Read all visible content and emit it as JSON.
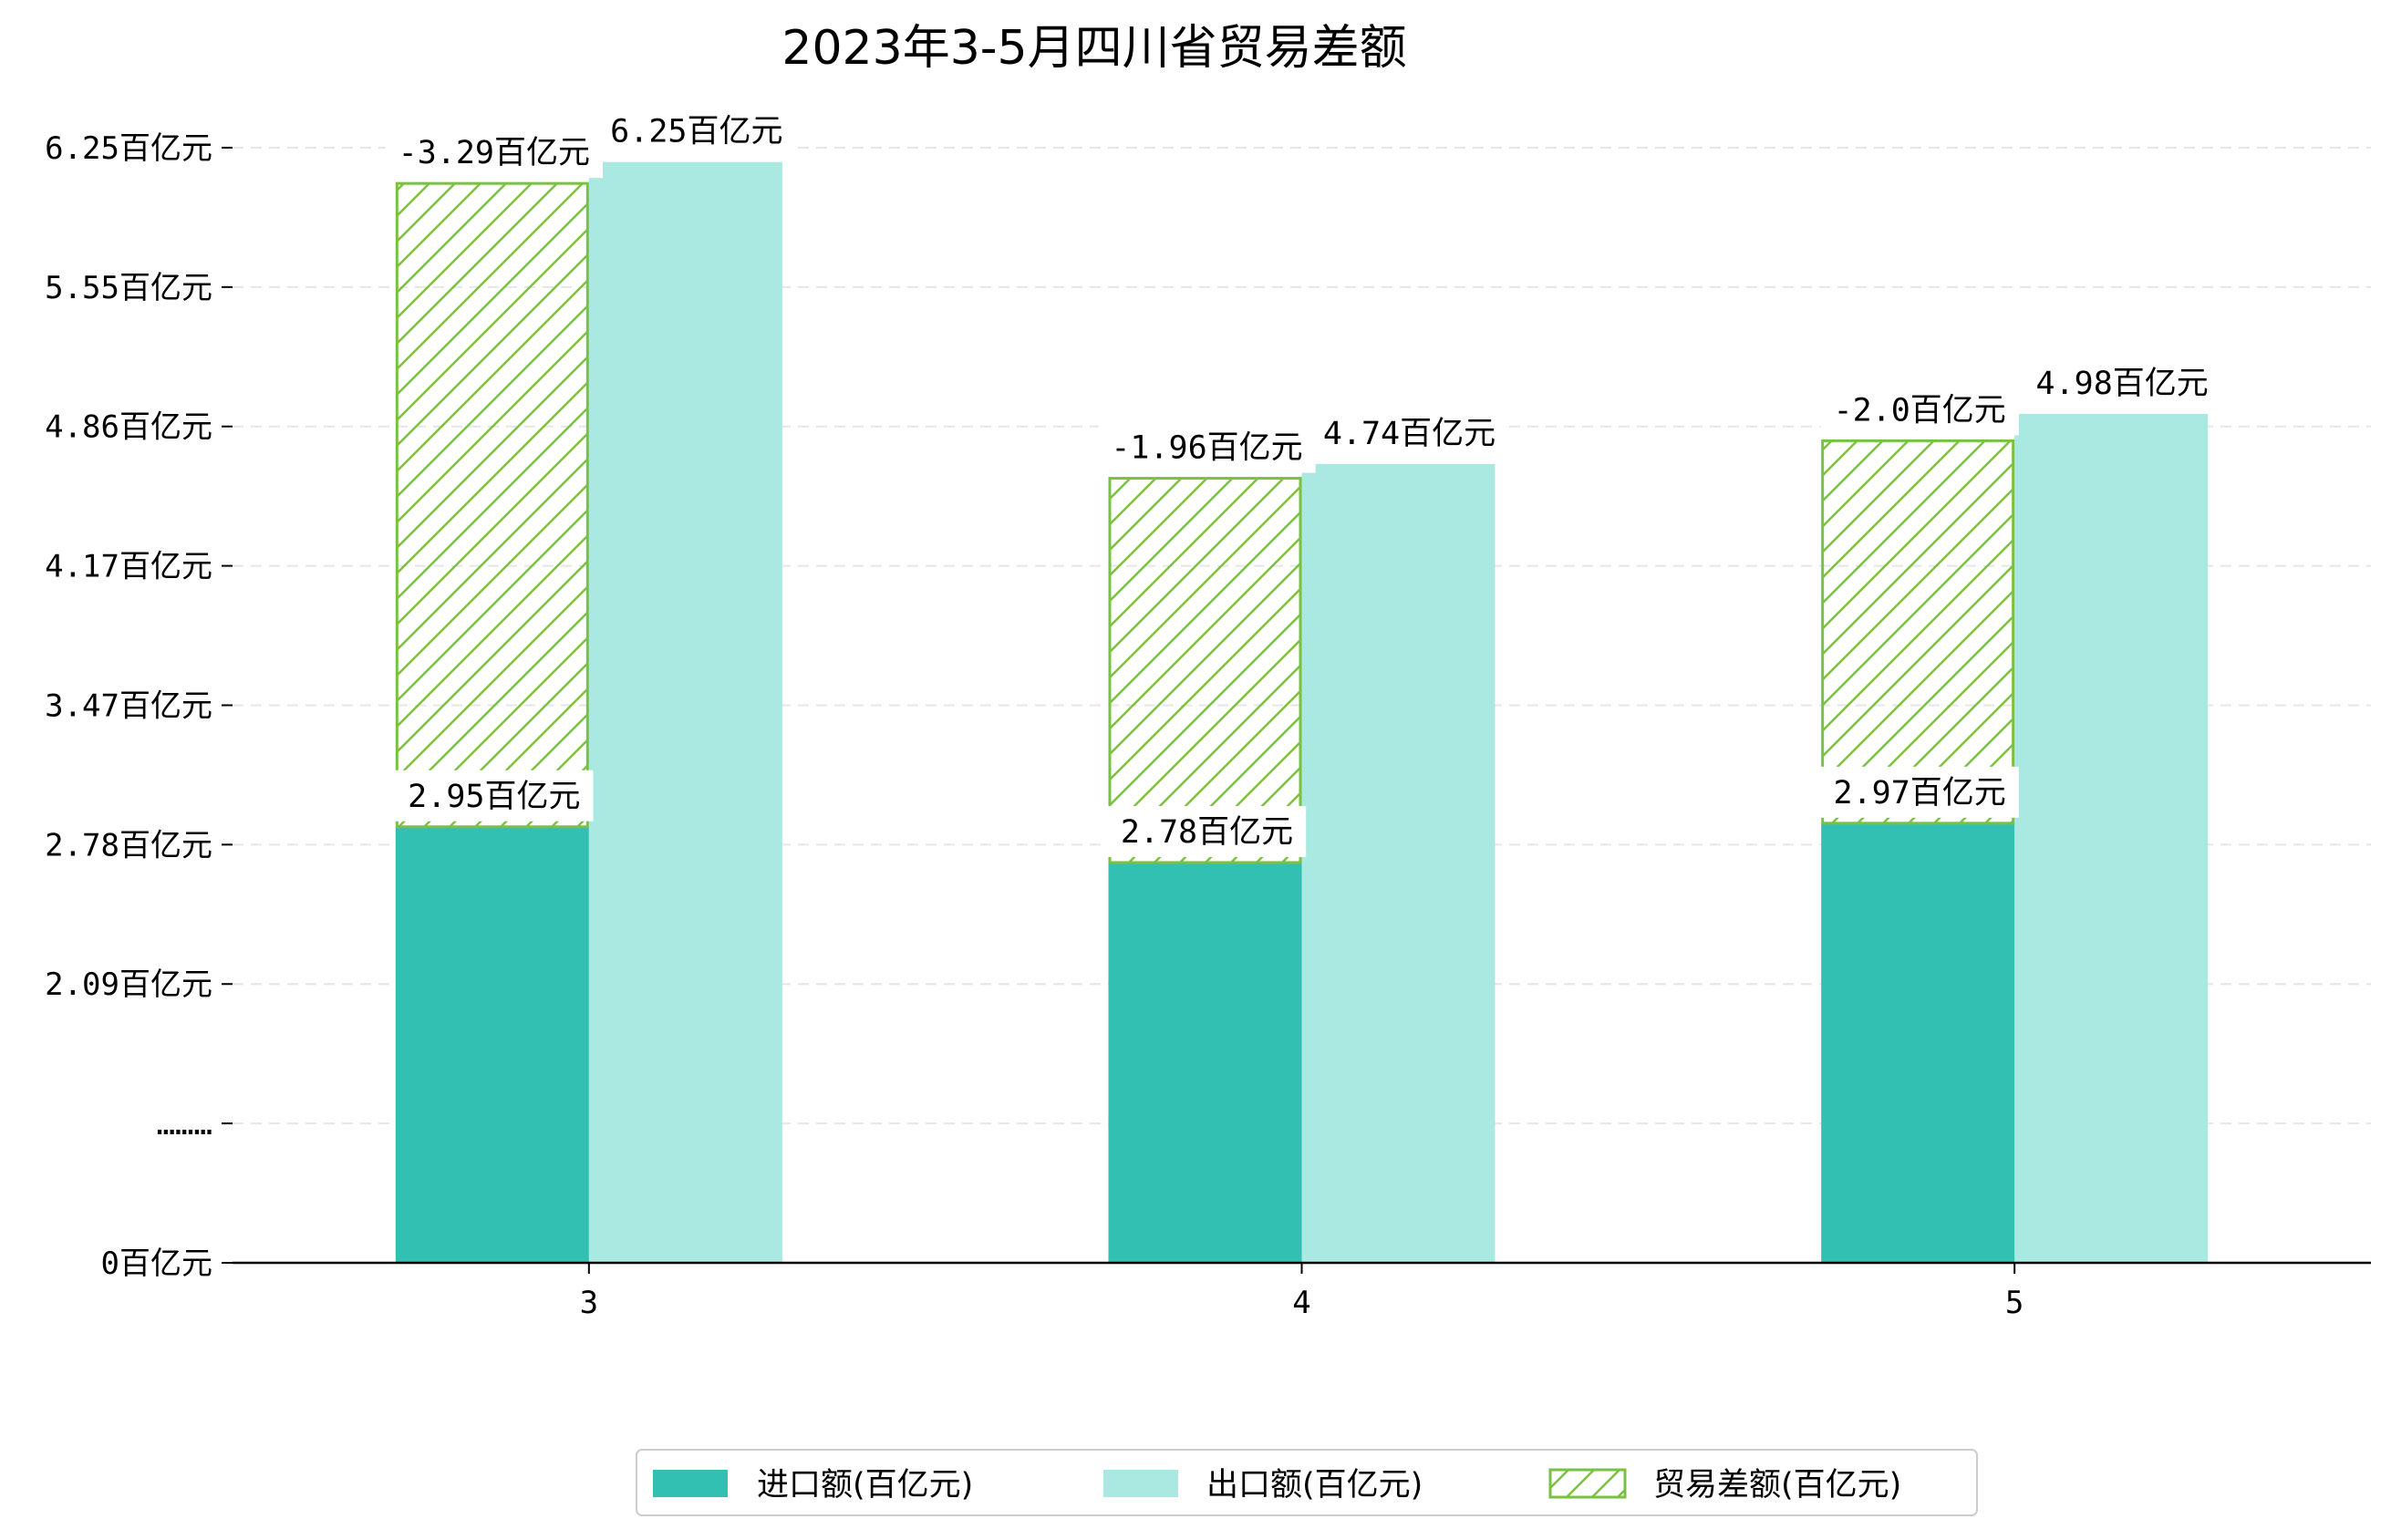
{
  "chart_data": {
    "type": "bar",
    "title": "2023年3-5月四川省贸易差额",
    "xlabel": "",
    "ylabel": "",
    "categories": [
      "3",
      "4",
      "5"
    ],
    "ylim": [
      0,
      6.25
    ],
    "y_ticks": [
      {
        "value": 0,
        "label": "0百亿元"
      },
      {
        "value": 0.78,
        "label": "………"
      },
      {
        "value": 1.56,
        "label": "2.09百亿元"
      },
      {
        "value": 2.34,
        "label": "2.78百亿元"
      },
      {
        "value": 3.12,
        "label": "3.47百亿元"
      },
      {
        "value": 3.9,
        "label": "4.17百亿元"
      },
      {
        "value": 4.68,
        "label": "4.86百亿元"
      },
      {
        "value": 5.46,
        "label": "5.55百亿元"
      },
      {
        "value": 6.24,
        "label": "6.25百亿元"
      }
    ],
    "series": [
      {
        "name": "进口额(百亿元)",
        "values": [
          2.95,
          2.78,
          2.97
        ],
        "labels": [
          "2.95百亿元",
          "2.78百亿元",
          "2.97百亿元"
        ],
        "color": "#32c0b3",
        "display_top": [
          2.44,
          2.24,
          2.46
        ]
      },
      {
        "name": "出口额(百亿元)",
        "values": [
          6.25,
          4.74,
          4.98
        ],
        "labels": [
          "6.25百亿元",
          "4.74百亿元",
          "4.98百亿元"
        ],
        "color": "#aae8e2",
        "display_top": [
          6.16,
          4.47,
          4.75
        ]
      },
      {
        "name": "贸易差额(百亿元)",
        "values": [
          -3.29,
          -1.96,
          -2.0
        ],
        "labels": [
          "-3.29百亿元",
          "-1.96百亿元",
          "-2.0百亿元"
        ],
        "color": "#7ac143",
        "pattern": "hatch",
        "display_top": [
          6.04,
          4.39,
          4.6
        ]
      }
    ],
    "grid": "horizontal-dashed",
    "legend_position": "bottom-center"
  }
}
